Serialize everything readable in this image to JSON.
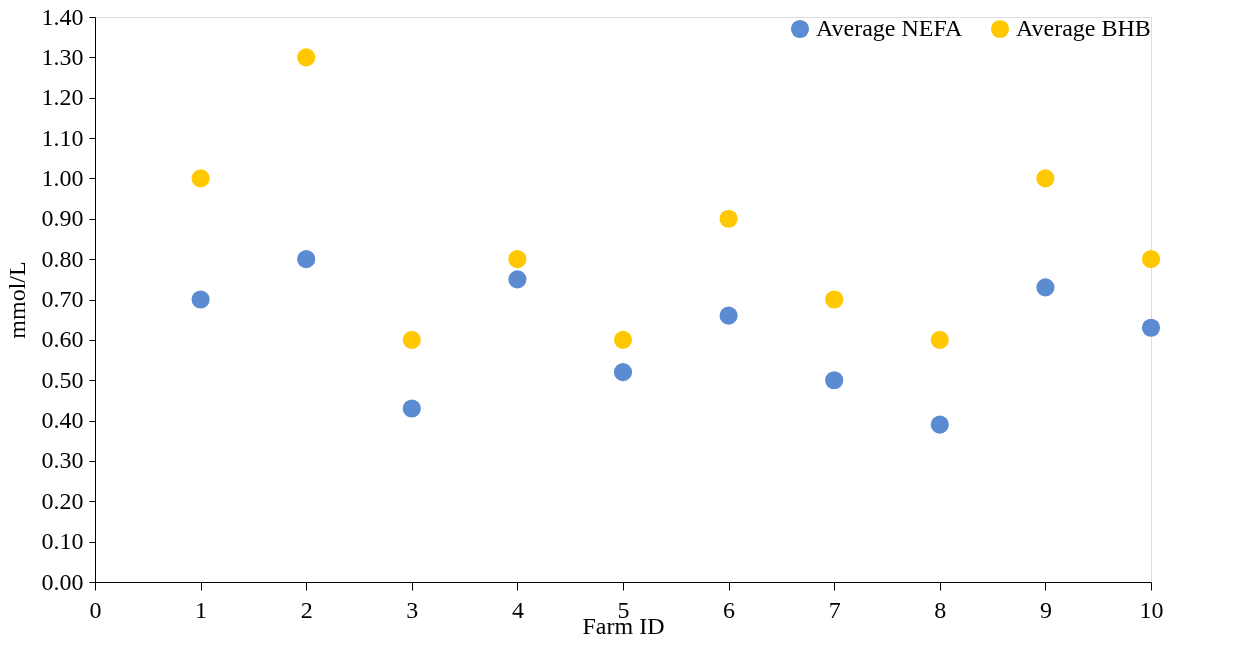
{
  "chart_data": {
    "type": "scatter",
    "xlabel": "Farm ID",
    "ylabel": "mmol/L",
    "x": [
      1,
      2,
      3,
      4,
      5,
      6,
      7,
      8,
      9,
      10
    ],
    "series": [
      {
        "name": "Average NEFA",
        "color": "#5b8bd0",
        "values": [
          0.7,
          0.8,
          0.43,
          0.75,
          0.52,
          0.66,
          0.5,
          0.39,
          0.73,
          0.63
        ]
      },
      {
        "name": "Average BHB",
        "color": "#ffc800",
        "values": [
          1.0,
          1.3,
          0.6,
          0.8,
          0.6,
          0.9,
          0.7,
          0.6,
          1.0,
          0.8
        ]
      }
    ],
    "xlim": [
      0,
      10
    ],
    "xticks": [
      0,
      1,
      2,
      3,
      4,
      5,
      6,
      7,
      8,
      9,
      10
    ],
    "ylim": [
      0,
      1.4
    ],
    "yticks": [
      {
        "value": 0,
        "label": "0.00"
      },
      {
        "value": 0.1,
        "label": "0.10"
      },
      {
        "value": 0.2,
        "label": "0.20"
      },
      {
        "value": 0.3,
        "label": "0.30"
      },
      {
        "value": 0.4,
        "label": "0.40"
      },
      {
        "value": 0.5,
        "label": "0.50"
      },
      {
        "value": 0.6,
        "label": "0.60"
      },
      {
        "value": 0.7,
        "label": "0.70"
      },
      {
        "value": 0.8,
        "label": "0.80"
      },
      {
        "value": 0.9,
        "label": "0.90"
      },
      {
        "value": 1.0,
        "label": "1.00"
      },
      {
        "value": 1.1,
        "label": "1.10"
      },
      {
        "value": 1.2,
        "label": "1.20"
      },
      {
        "value": 1.3,
        "label": "1.30"
      },
      {
        "value": 1.4,
        "label": "1.40"
      }
    ],
    "marker": "circle",
    "grid": false,
    "legend": "top right"
  }
}
